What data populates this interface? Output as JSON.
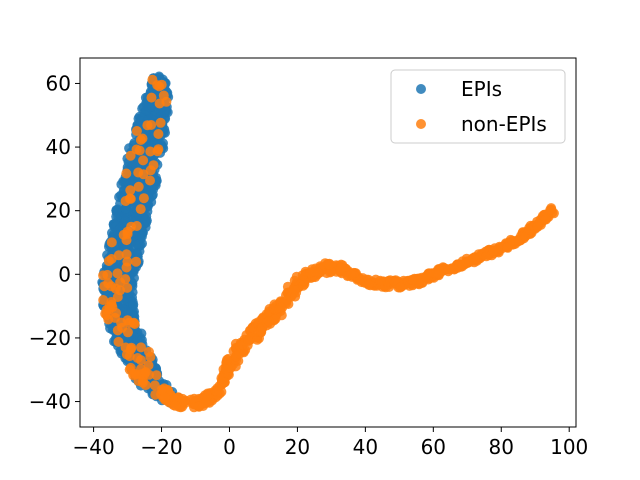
{
  "chart_data": {
    "type": "scatter",
    "title": "",
    "xlabel": "",
    "ylabel": "",
    "xlim": [
      -44,
      102
    ],
    "ylim": [
      -48,
      68
    ],
    "xticks": [
      -40,
      -20,
      0,
      20,
      40,
      60,
      80,
      100
    ],
    "yticks": [
      -40,
      -20,
      0,
      20,
      40,
      60
    ],
    "xtick_labels": [
      "−40",
      "−20",
      "0",
      "20",
      "40",
      "60",
      "80",
      "100"
    ],
    "ytick_labels": [
      "−40",
      "−20",
      "0",
      "20",
      "40",
      "60"
    ],
    "grid": false,
    "legend": {
      "position": "top-right"
    },
    "series": [
      {
        "name": "EPIs",
        "color": "#1f77b4",
        "shape": "filled-circle",
        "band": {
          "spine_x": [
            -21,
            -21,
            -22,
            -23,
            -24,
            -25,
            -26,
            -27,
            -28,
            -29,
            -30,
            -31,
            -32,
            -33,
            -33,
            -32,
            -30,
            -27,
            -25,
            -22,
            -19,
            -16
          ],
          "spine_y": [
            62,
            57,
            52,
            47,
            42,
            37,
            32,
            27,
            22,
            17,
            12,
            7,
            2,
            -3,
            -8,
            -14,
            -20,
            -26,
            -31,
            -35,
            -38,
            -40
          ],
          "half_width": [
            1.5,
            3,
            4,
            4.5,
            5,
            5,
            5,
            5,
            5,
            5,
            5,
            5,
            5,
            4.5,
            4.5,
            4.5,
            4.5,
            4,
            4,
            3.5,
            3,
            2
          ],
          "density": 10
        }
      },
      {
        "name": "non-EPIs",
        "color": "#ff7f0e",
        "shape": "filled-circle",
        "curve": {
          "x": [
            -20,
            -16,
            -12,
            -8,
            -4,
            -2,
            0,
            2,
            5,
            8,
            12,
            16,
            20,
            24,
            28,
            32,
            36,
            40,
            44,
            48,
            52,
            56,
            60,
            65,
            70,
            75,
            80,
            85,
            90,
            95
          ],
          "y": [
            -37,
            -40,
            -41,
            -40,
            -38,
            -34,
            -29,
            -25,
            -21,
            -18,
            -14,
            -9,
            -3,
            0,
            2,
            2,
            0,
            -2,
            -3,
            -3,
            -3,
            -2,
            0,
            2,
            4,
            6,
            8,
            11,
            15,
            20
          ],
          "half_width": [
            1.5,
            1.5,
            1.5,
            1.5,
            1.5,
            1.5,
            2,
            2,
            2,
            2,
            2,
            2,
            2,
            1.5,
            1.5,
            1.5,
            1.2,
            1.2,
            1.2,
            1.2,
            1.2,
            1.2,
            1,
            1,
            1,
            1,
            1,
            1,
            1,
            1
          ],
          "density": 4
        },
        "band_x_range": [
          -34,
          -18
        ],
        "band_points": 130
      }
    ]
  }
}
